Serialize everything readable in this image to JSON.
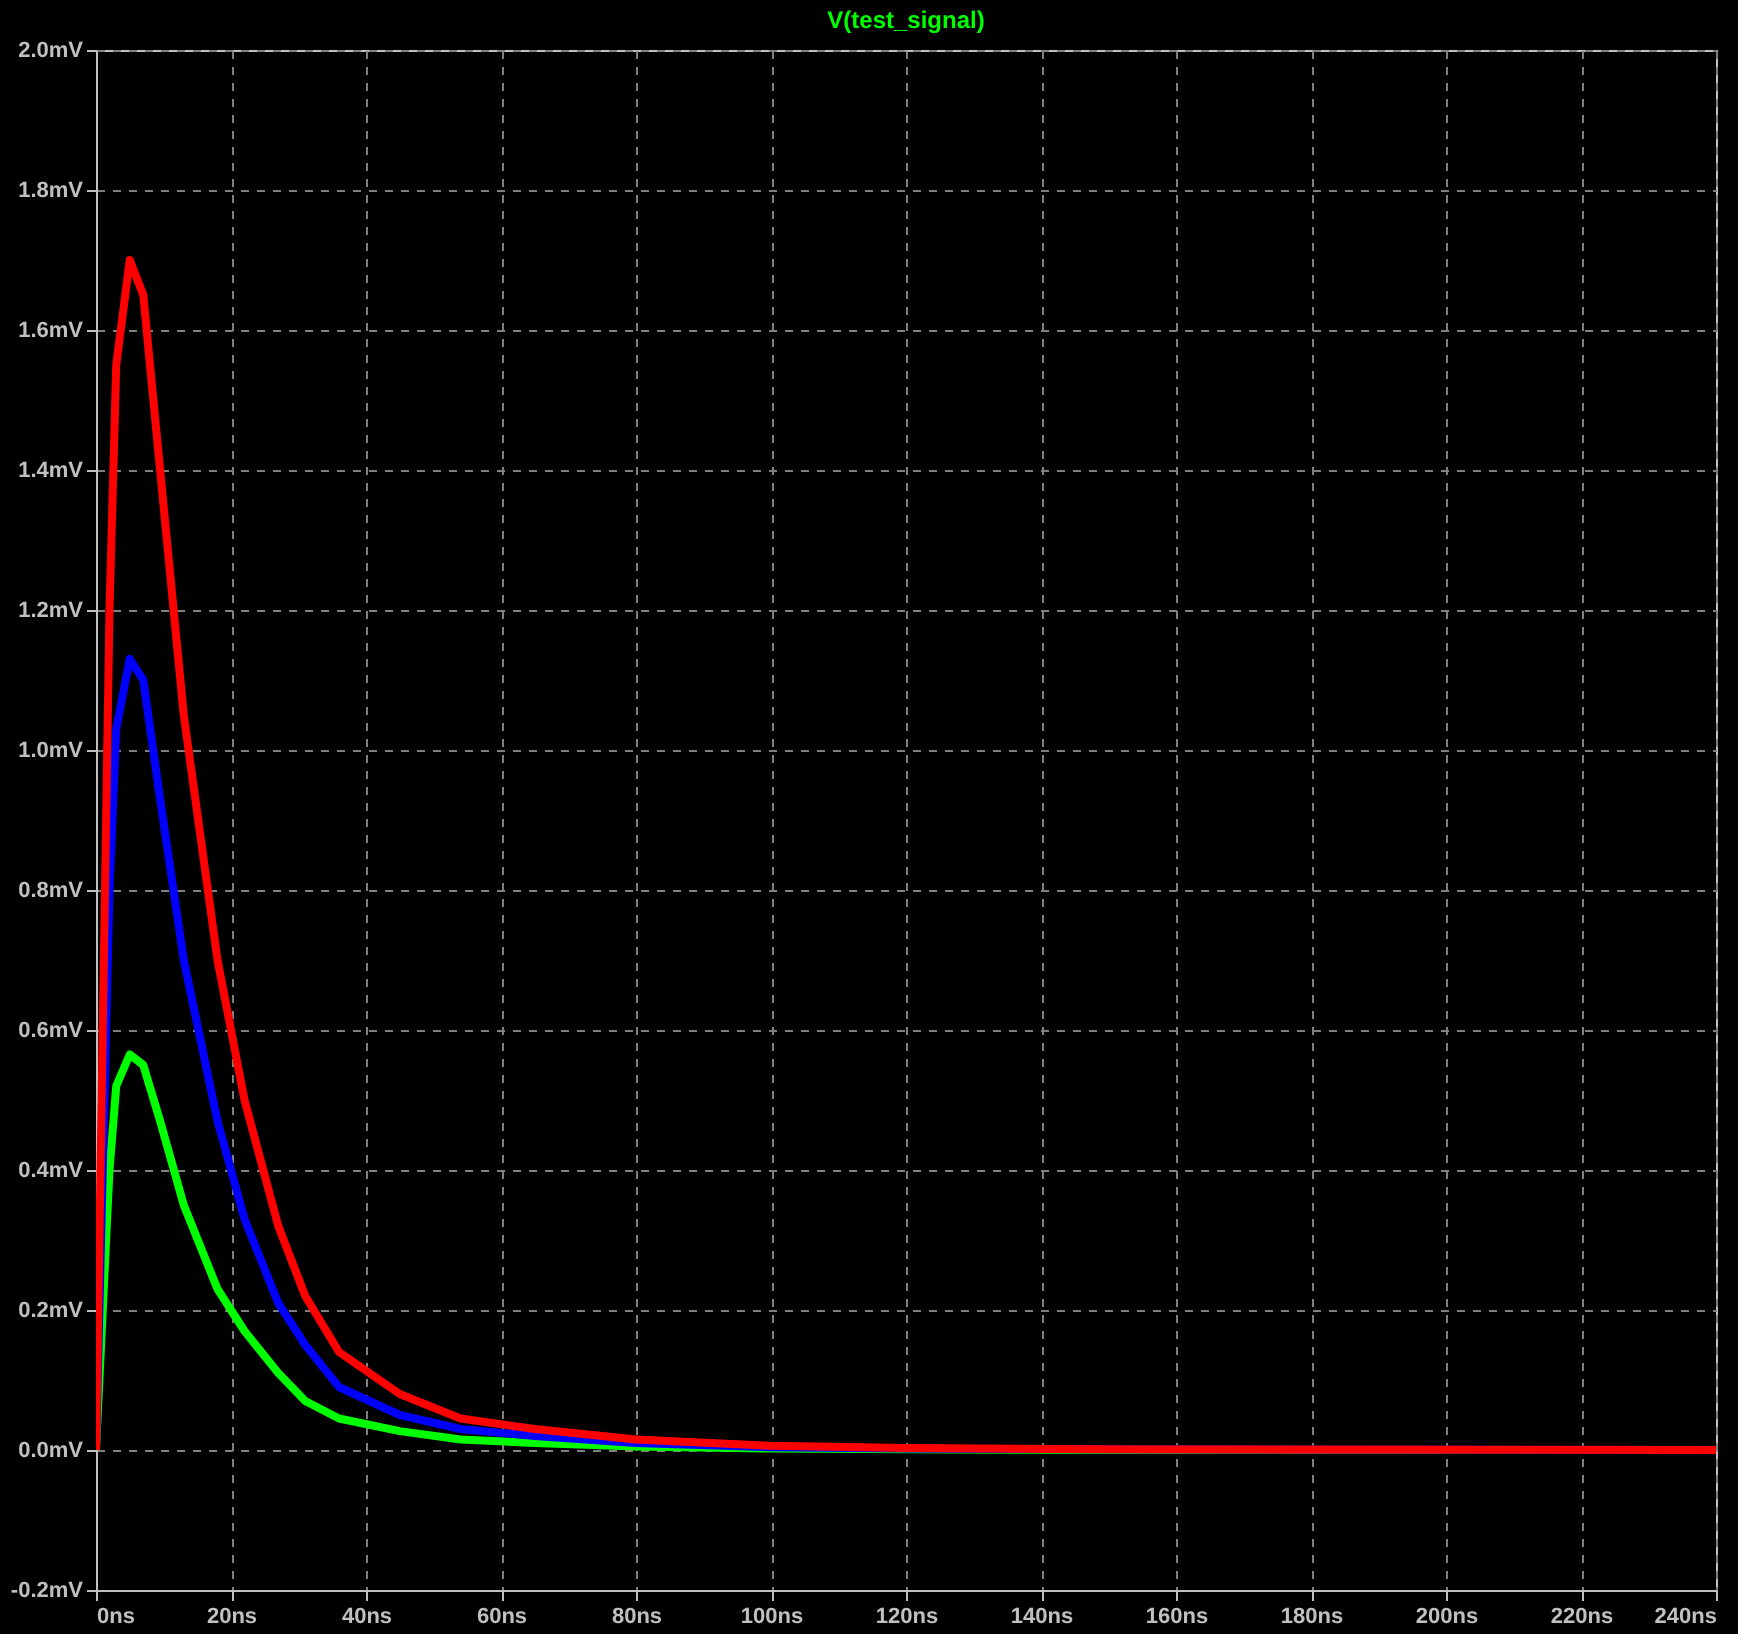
{
  "chart_data": {
    "type": "line",
    "title": "V(test_signal)",
    "x": [
      0,
      1,
      2,
      3,
      5,
      7,
      9.5,
      13,
      18,
      22,
      27,
      31,
      36,
      45,
      54,
      65,
      80,
      100,
      120,
      150,
      240
    ],
    "series": [
      {
        "color": "#00ff00",
        "values": [
          0,
          0.2,
          0.4,
          0.52,
          0.565,
          0.55,
          0.47,
          0.35,
          0.23,
          0.17,
          0.11,
          0.07,
          0.045,
          0.027,
          0.015,
          0.01,
          0.005,
          0.002,
          0.001,
          0,
          0
        ]
      },
      {
        "color": "#0000ff",
        "values": [
          0,
          0.4,
          0.8,
          1.03,
          1.13,
          1.1,
          0.93,
          0.7,
          0.47,
          0.33,
          0.21,
          0.15,
          0.09,
          0.05,
          0.03,
          0.02,
          0.01,
          0.004,
          0.002,
          0.001,
          0
        ]
      },
      {
        "color": "#ff0000",
        "values": [
          0,
          0.6,
          1.2,
          1.55,
          1.7,
          1.65,
          1.4,
          1.05,
          0.7,
          0.5,
          0.32,
          0.22,
          0.14,
          0.08,
          0.045,
          0.03,
          0.015,
          0.006,
          0.003,
          0.001,
          0
        ]
      }
    ],
    "xlim": [
      0,
      240
    ],
    "xticks": [
      {
        "value": 0,
        "label": "0ns"
      },
      {
        "value": 20,
        "label": "20ns"
      },
      {
        "value": 40,
        "label": "40ns"
      },
      {
        "value": 60,
        "label": "60ns"
      },
      {
        "value": 80,
        "label": "80ns"
      },
      {
        "value": 100,
        "label": "100ns"
      },
      {
        "value": 120,
        "label": "120ns"
      },
      {
        "value": 140,
        "label": "140ns"
      },
      {
        "value": 160,
        "label": "160ns"
      },
      {
        "value": 180,
        "label": "180ns"
      },
      {
        "value": 200,
        "label": "200ns"
      },
      {
        "value": 220,
        "label": "220ns"
      },
      {
        "value": 240,
        "label": "240ns"
      }
    ],
    "ylim": [
      -0.2,
      2.0
    ],
    "yticks": [
      {
        "value": -0.2,
        "label": "-0.2mV"
      },
      {
        "value": 0,
        "label": "0.0mV"
      },
      {
        "value": 0.2,
        "label": "0.2mV"
      },
      {
        "value": 0.4,
        "label": "0.4mV"
      },
      {
        "value": 0.6,
        "label": "0.6mV"
      },
      {
        "value": 0.8,
        "label": "0.8mV"
      },
      {
        "value": 1.0,
        "label": "1.0mV"
      },
      {
        "value": 1.2,
        "label": "1.2mV"
      },
      {
        "value": 1.4,
        "label": "1.4mV"
      },
      {
        "value": 1.6,
        "label": "1.6mV"
      },
      {
        "value": 1.8,
        "label": "1.8mV"
      },
      {
        "value": 2.0,
        "label": "2.0mV"
      }
    ],
    "grid": true,
    "line_style": "solid",
    "marker": "none"
  }
}
